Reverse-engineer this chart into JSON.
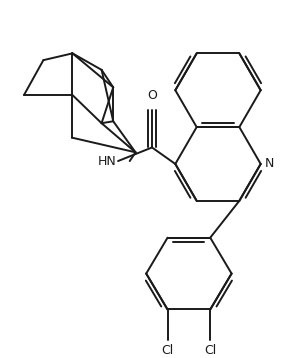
{
  "background_color": "#ffffff",
  "line_color": "#1a1a1a",
  "line_width": 1.4,
  "figsize": [
    3.06,
    3.58
  ],
  "dpi": 100,
  "xlim": [
    0,
    306
  ],
  "ylim": [
    0,
    358
  ]
}
